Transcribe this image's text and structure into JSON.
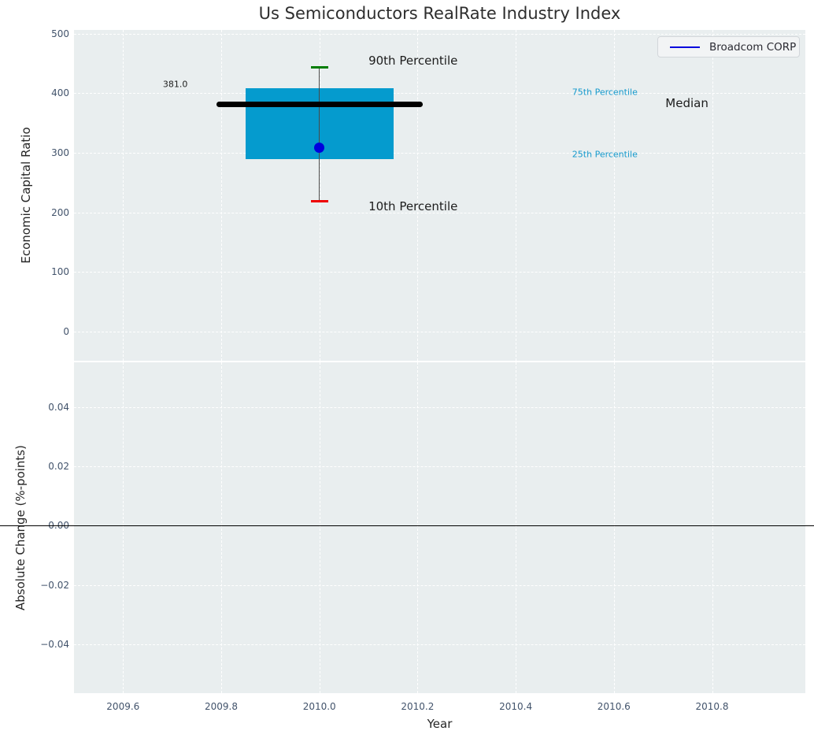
{
  "figure": {
    "title": "Us Semiconductors RealRate Industry Index",
    "legend": {
      "label": "Broadcom CORP",
      "line_color": "#0000dd"
    }
  },
  "colors": {
    "plot_bg": "#e9eeef",
    "grid": "#ffffff",
    "tick_label": "#42536b",
    "axis_label": "#262626",
    "title": "#2e2e2e"
  },
  "chart_data": [
    {
      "type": "box",
      "title": "Us Semiconductors RealRate Industry Index",
      "ylabel": "Economic Capital Ratio",
      "ylim": [
        -49,
        506
      ],
      "grid": true,
      "yticks": [
        {
          "v": 500,
          "label": "500"
        },
        {
          "v": 400,
          "label": "400"
        },
        {
          "v": 300,
          "label": "300"
        },
        {
          "v": 200,
          "label": "200"
        },
        {
          "v": 100,
          "label": "100"
        },
        {
          "v": 0,
          "label": "0"
        }
      ],
      "box": {
        "x": 2010.0,
        "p10": 219,
        "p25": 289,
        "median": 381.0,
        "p75": 408,
        "p90": 443,
        "box_halfwidth": 0.151,
        "median_halfwidth": 0.21,
        "cap_halfwidth": 0.018,
        "box_color": "#059bce",
        "median_color": "#000000",
        "cap90_color": "#007d00",
        "cap10_color": "#ee0000",
        "whisker_color": "#4a4a4a",
        "median_label": "381.0"
      },
      "points": [
        {
          "name": "Broadcom CORP",
          "x": 2010.0,
          "y": 308,
          "color": "#0000dd"
        }
      ],
      "annotations": [
        {
          "text": "90th Percentile",
          "x": 2010.1,
          "y": 455,
          "color": "#1c1c1c",
          "size": 15
        },
        {
          "text": "10th Percentile",
          "x": 2010.1,
          "y": 210,
          "color": "#1c1c1c",
          "size": 15
        },
        {
          "text": "75th Percentile",
          "x": 2010.515,
          "y": 402,
          "color": "#1599cc",
          "size": 11
        },
        {
          "text": "25th Percentile",
          "x": 2010.515,
          "y": 297,
          "color": "#1599cc",
          "size": 11
        },
        {
          "text": "Median",
          "x": 2010.705,
          "y": 383,
          "color": "#1c1c1c",
          "size": 15
        },
        {
          "text": "381.0",
          "x": 2009.681,
          "y": 415,
          "color": "#1c1c1c",
          "size": 11
        }
      ],
      "legend_position": "upper right"
    },
    {
      "type": "line",
      "ylabel": "Absolute Change (%-points)",
      "xlabel": "Year",
      "ylim": [
        -0.0565,
        0.0551
      ],
      "grid": true,
      "yticks": [
        {
          "v": 0.04,
          "label": "0.04"
        },
        {
          "v": 0.02,
          "label": "0.02"
        },
        {
          "v": 0,
          "label": "0.00"
        },
        {
          "v": -0.02,
          "label": "−0.02"
        },
        {
          "v": -0.04,
          "label": "−0.04"
        }
      ],
      "xlim": [
        2009.5,
        2010.99
      ],
      "xticks": [
        {
          "v": 2009.6,
          "label": "2009.6"
        },
        {
          "v": 2009.8,
          "label": "2009.8"
        },
        {
          "v": 2010.0,
          "label": "2010.0"
        },
        {
          "v": 2010.2,
          "label": "2010.2"
        },
        {
          "v": 2010.4,
          "label": "2010.4"
        },
        {
          "v": 2010.6,
          "label": "2010.6"
        },
        {
          "v": 2010.8,
          "label": "2010.8"
        }
      ],
      "zero_line": 0.0,
      "series": []
    }
  ]
}
